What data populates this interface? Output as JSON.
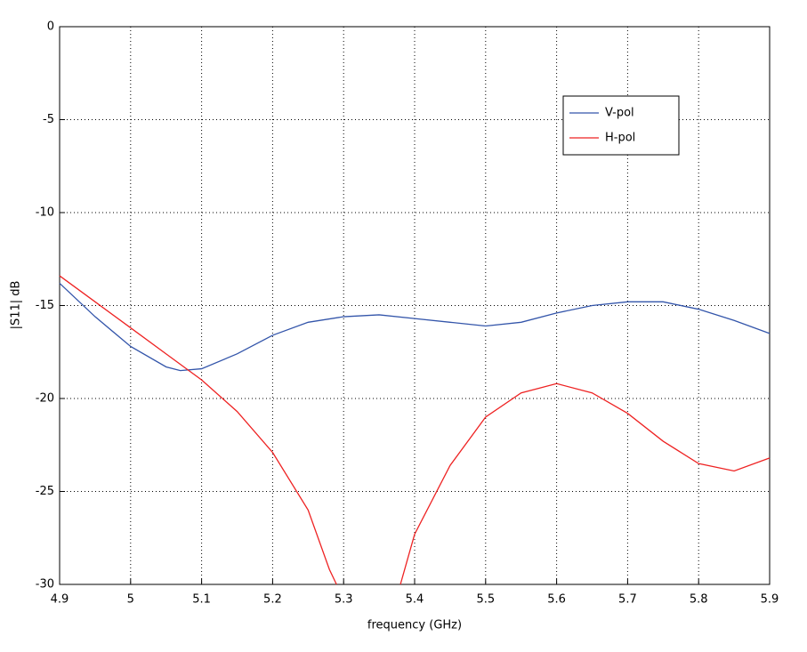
{
  "chart_data": {
    "type": "line",
    "xlabel": "frequency (GHz)",
    "ylabel": "|S11| dB",
    "xlim": [
      4.9,
      5.9
    ],
    "xticks": [
      4.9,
      5,
      5.1,
      5.2,
      5.3,
      5.4,
      5.5,
      5.6,
      5.7,
      5.8,
      5.9
    ],
    "ylim": [
      -30,
      0
    ],
    "yticks": [
      -30,
      -25,
      -20,
      -15,
      -10,
      -5,
      0
    ],
    "grid": true,
    "legend": "upper right",
    "series": [
      {
        "name": "V-pol",
        "color": "#3355aa",
        "x": [
          4.9,
          4.95,
          5.0,
          5.05,
          5.07,
          5.1,
          5.15,
          5.2,
          5.25,
          5.3,
          5.35,
          5.4,
          5.45,
          5.5,
          5.55,
          5.6,
          5.65,
          5.7,
          5.75,
          5.8,
          5.85,
          5.9
        ],
        "values": [
          -13.8,
          -15.6,
          -17.2,
          -18.3,
          -18.5,
          -18.4,
          -17.6,
          -16.6,
          -15.9,
          -15.6,
          -15.5,
          -15.7,
          -15.9,
          -16.1,
          -15.9,
          -15.4,
          -15.0,
          -14.8,
          -14.8,
          -15.2,
          -15.8,
          -16.5
        ]
      },
      {
        "name": "H-pol",
        "color": "#ee2222",
        "x": [
          4.9,
          4.95,
          5.0,
          5.05,
          5.1,
          5.15,
          5.2,
          5.25,
          5.28,
          5.29,
          5.33,
          5.38,
          5.4,
          5.45,
          5.5,
          5.55,
          5.6,
          5.65,
          5.7,
          5.75,
          5.8,
          5.85,
          5.9
        ],
        "values": [
          -13.4,
          -14.8,
          -16.2,
          -17.6,
          -19.0,
          -20.7,
          -22.9,
          -26.0,
          -29.2,
          -30,
          null,
          -30,
          -27.3,
          -23.6,
          -21.0,
          -19.7,
          -19.2,
          -19.7,
          -20.8,
          -22.3,
          -23.5,
          -23.9,
          -23.2
        ]
      }
    ]
  }
}
